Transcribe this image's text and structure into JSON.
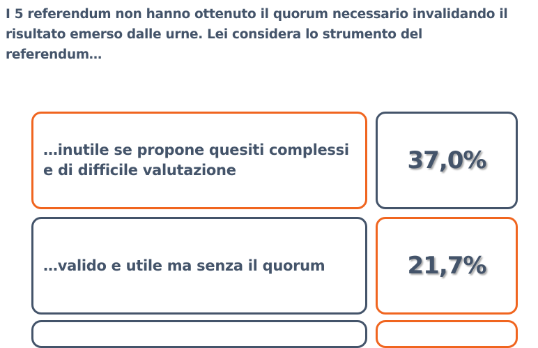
{
  "question": "I 5 referendum non hanno ottenuto il quorum necessario invalidando il risultato emerso dalle urne. Lei considera lo strumento del referendum…",
  "colors": {
    "text": "#44546A",
    "accent": "#F0651F"
  },
  "answers": [
    {
      "label": "…inutile se propone quesiti complessi e di difficile valutazione",
      "value": "37,0%"
    },
    {
      "label": "…valido e utile ma senza il quorum",
      "value": "21,7%"
    }
  ]
}
